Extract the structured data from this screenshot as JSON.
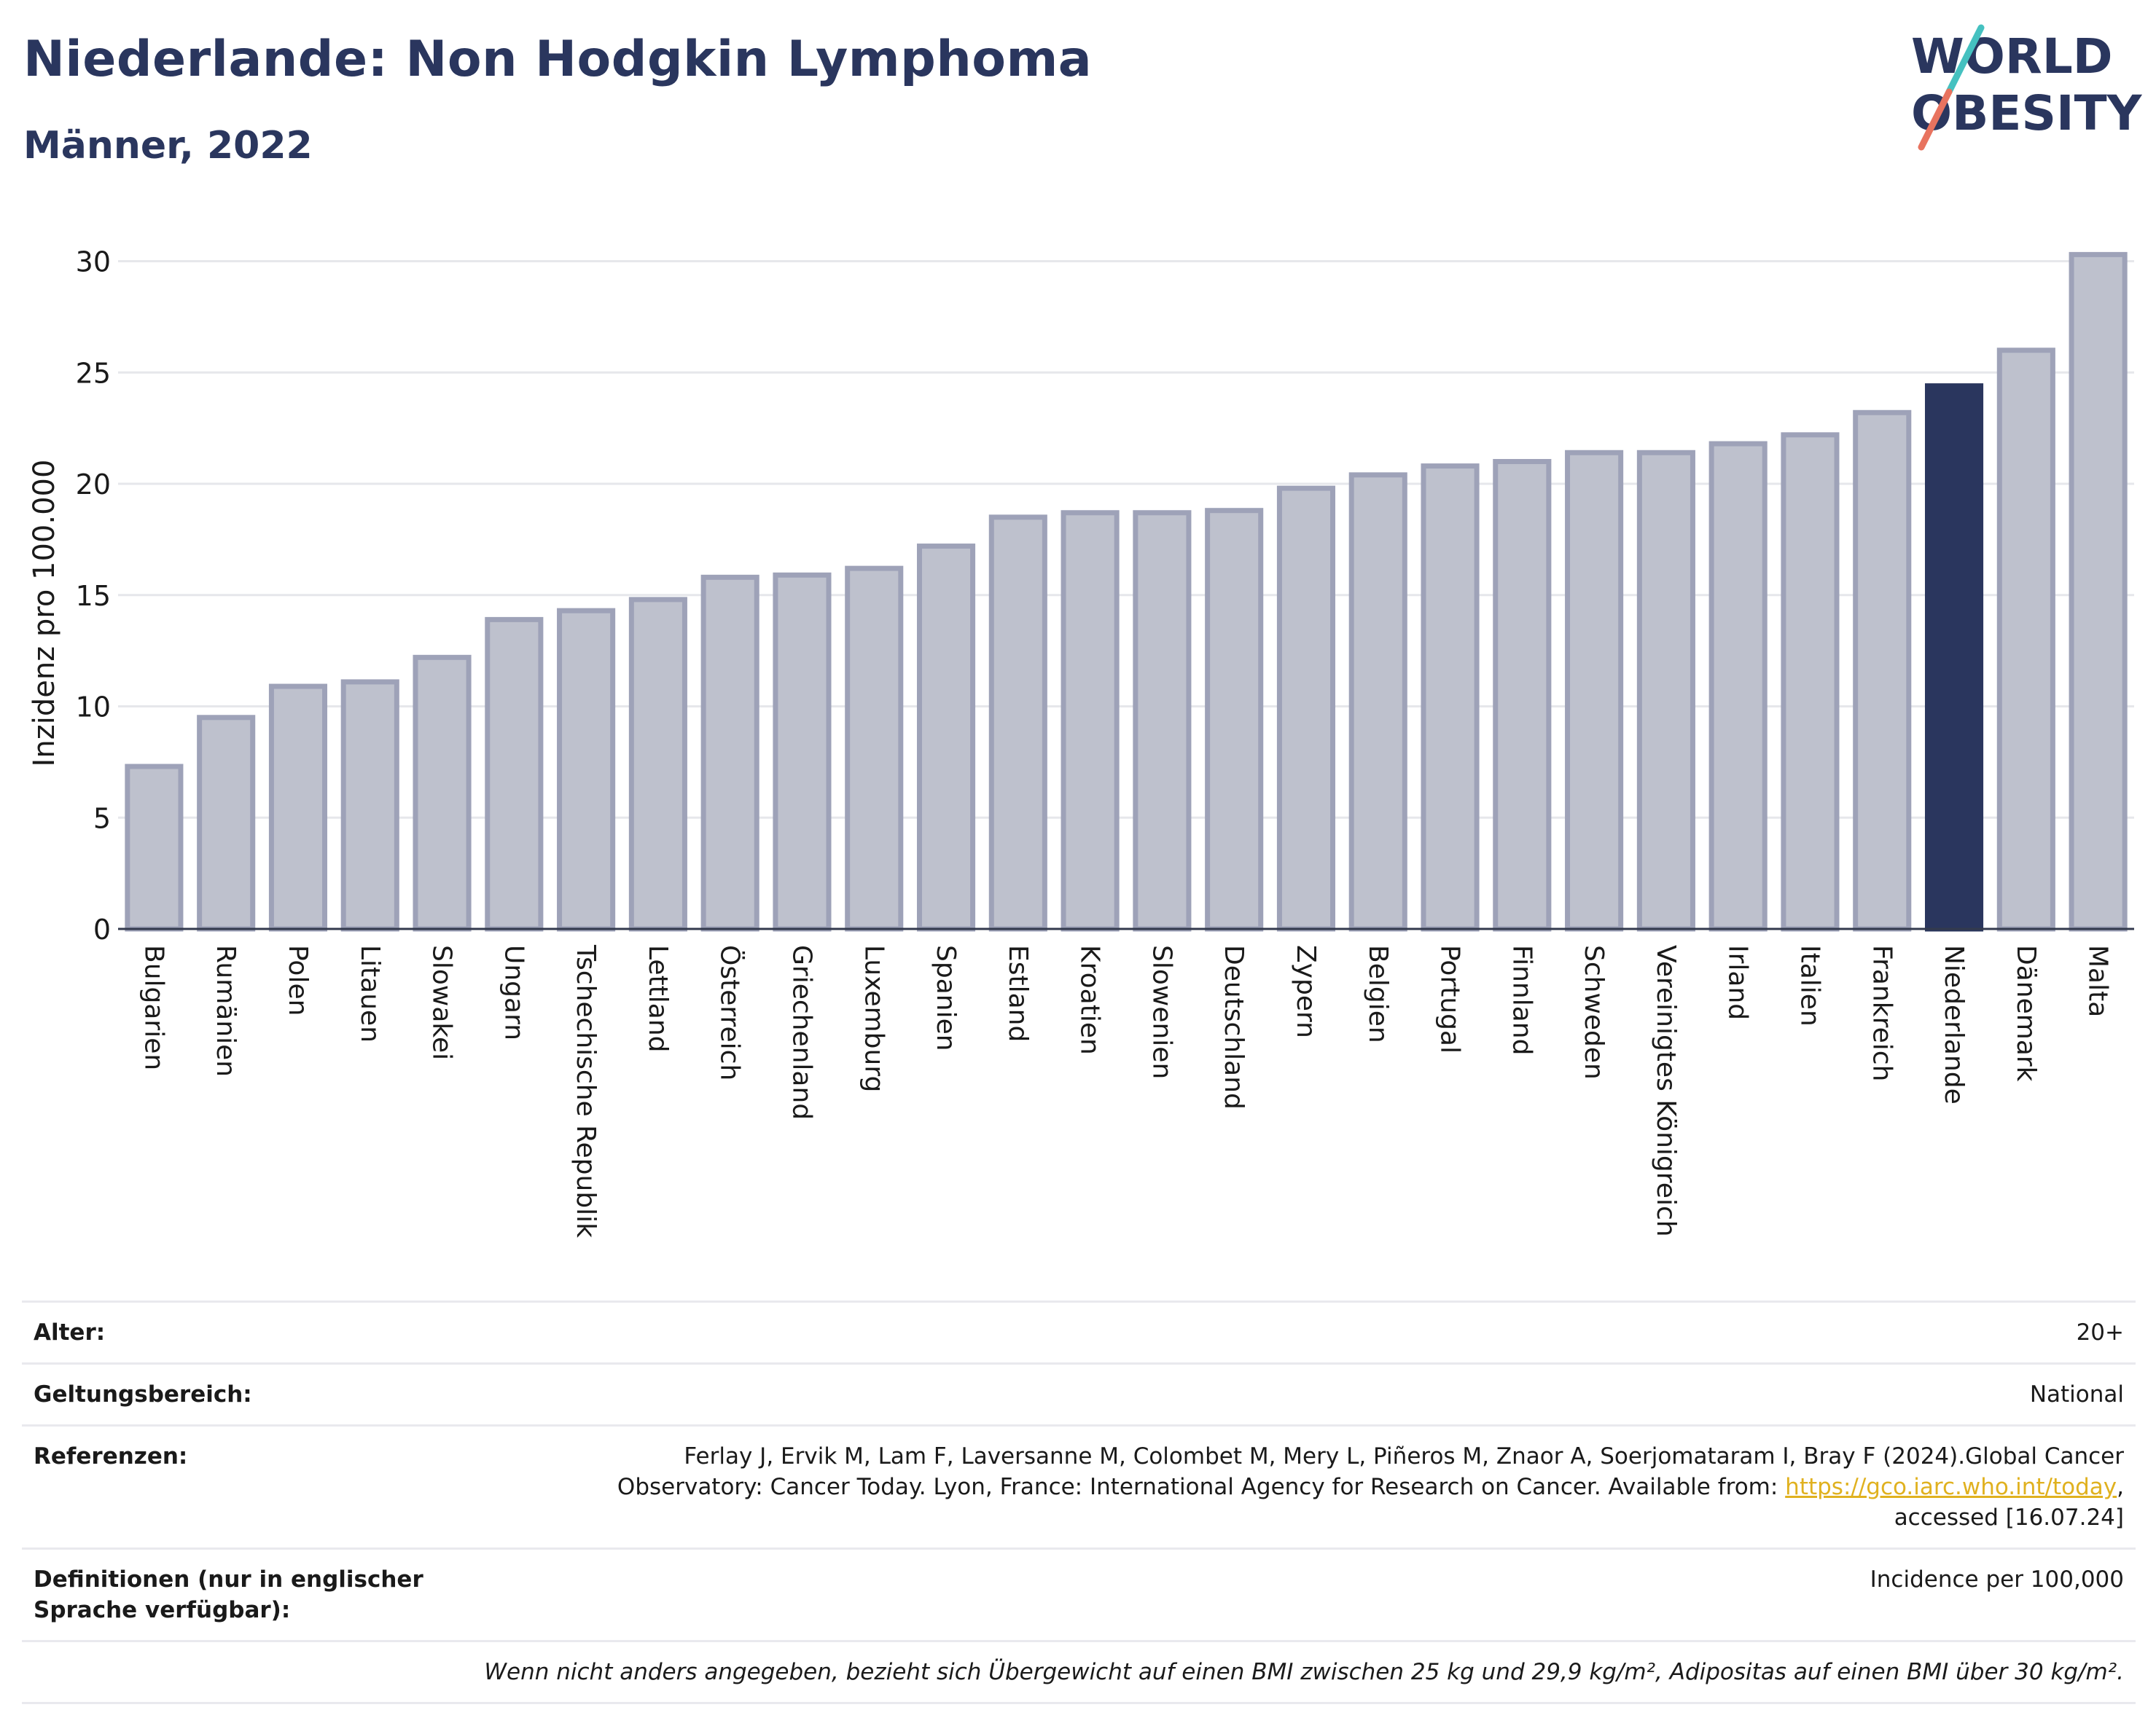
{
  "header": {
    "title": "Niederlande: Non Hodgkin Lymphoma",
    "subtitle": "Männer, 2022"
  },
  "logo": {
    "line1": "WORLD",
    "line2": "OBESITY",
    "accent_colors": [
      "#45c1c0",
      "#e8735f"
    ],
    "text_color": "#2a365e"
  },
  "chart_data": {
    "type": "bar",
    "ylabel": "Inzidenz pro 100.000",
    "xlabel": "",
    "ylim": [
      0,
      31
    ],
    "yticks": [
      0,
      5,
      10,
      15,
      20,
      25,
      30
    ],
    "grid": true,
    "highlight": "Niederlande",
    "colors": {
      "bar": "#bec1cd",
      "bar_edge": "#9ea2b8",
      "highlight": "#2a365e"
    },
    "categories": [
      "Bulgarien",
      "Rumänien",
      "Polen",
      "Litauen",
      "Slowakei",
      "Ungarn",
      "Tschechische Republik",
      "Lettland",
      "Österreich",
      "Griechenland",
      "Luxemburg",
      "Spanien",
      "Estland",
      "Kroatien",
      "Slowenien",
      "Deutschland",
      "Zypern",
      "Belgien",
      "Portugal",
      "Finnland",
      "Schweden",
      "Vereinigtes Königreich",
      "Irland",
      "Italien",
      "Frankreich",
      "Niederlande",
      "Dänemark",
      "Malta"
    ],
    "values": [
      7.3,
      9.5,
      10.9,
      11.1,
      12.2,
      13.9,
      14.3,
      14.8,
      15.8,
      15.9,
      16.2,
      17.2,
      18.5,
      18.7,
      18.7,
      18.8,
      19.8,
      20.4,
      20.8,
      21.0,
      21.4,
      21.4,
      21.8,
      22.2,
      23.2,
      24.4,
      26.0,
      30.3
    ]
  },
  "meta": {
    "age_label": "Alter:",
    "age_value": "20+",
    "scope_label": "Geltungsbereich:",
    "scope_value": "National",
    "ref_label": "Referenzen:",
    "ref_text": "Ferlay J, Ervik M, Lam F, Laversanne M, Colombet M, Mery L, Piñeros M, Znaor A, Soerjomataram I, Bray F (2024).Global Cancer Observatory: Cancer Today. Lyon, France: International Agency for Research on Cancer. Available from:",
    "ref_link": "https://gco.iarc.who.int/today",
    "ref_tail": ", accessed [16.07.24]",
    "def_label": "Definitionen (nur in englischer Sprache verfügbar):",
    "def_value": "Incidence per 100,000",
    "note": "Wenn nicht anders angegeben, bezieht sich Übergewicht auf einen BMI zwischen 25 kg und 29,9 kg/m², Adipositas auf einen BMI über 30 kg/m²."
  }
}
